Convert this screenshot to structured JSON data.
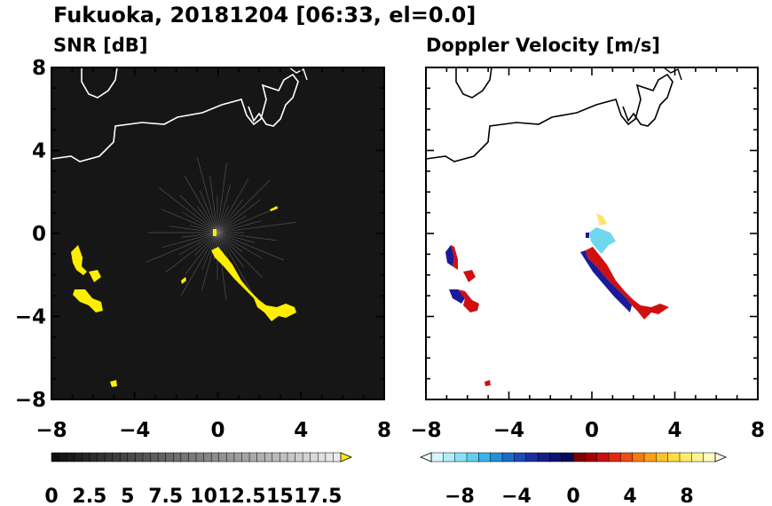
{
  "title": "Fukuoka, 20181204 [06:33, el=0.0]",
  "colors": {
    "snr_background": "#161616",
    "echo_yellow": "#ffee00",
    "coast_on_dark": "#ffffff",
    "coast_on_light": "#000000",
    "approaching": "#1a1a9a",
    "receding": "#d01010"
  },
  "chart_data": [
    {
      "type": "heatmap",
      "title": "SNR [dB]",
      "xlim": [
        -8,
        8
      ],
      "ylim": [
        -8,
        8
      ],
      "x_ticks": [
        "−8",
        "−4",
        "0",
        "4",
        "8"
      ],
      "y_ticks": [
        "8",
        "4",
        "0",
        "−4",
        "−8"
      ],
      "x_values": [
        -8,
        -4,
        0,
        4,
        8
      ],
      "y_values": [
        8,
        4,
        0,
        -4,
        -8
      ],
      "colorbar": {
        "range": [
          0,
          19
        ],
        "extend": "max",
        "labels": [
          "0",
          "2.5",
          "5",
          "7.5",
          "10",
          "12.5",
          "15",
          "17.5"
        ],
        "label_values": [
          0,
          2.5,
          5,
          7.5,
          10,
          12.5,
          15,
          17.5
        ]
      }
    },
    {
      "type": "heatmap",
      "title": "Doppler Velocity [m/s]",
      "xlim": [
        -8,
        8
      ],
      "ylim": [
        -8,
        8
      ],
      "x_ticks": [
        "−8",
        "−4",
        "0",
        "4",
        "8"
      ],
      "y_ticks": [],
      "x_values": [
        -8,
        -4,
        0,
        4,
        8
      ],
      "y_values": [
        8,
        4,
        0,
        -4,
        -8
      ],
      "colorbar": {
        "range": [
          -10,
          10
        ],
        "extend": "both",
        "labels": [
          "−8",
          "−4",
          "0",
          "4",
          "8"
        ],
        "label_values": [
          -8,
          -4,
          0,
          4,
          8
        ]
      }
    }
  ]
}
